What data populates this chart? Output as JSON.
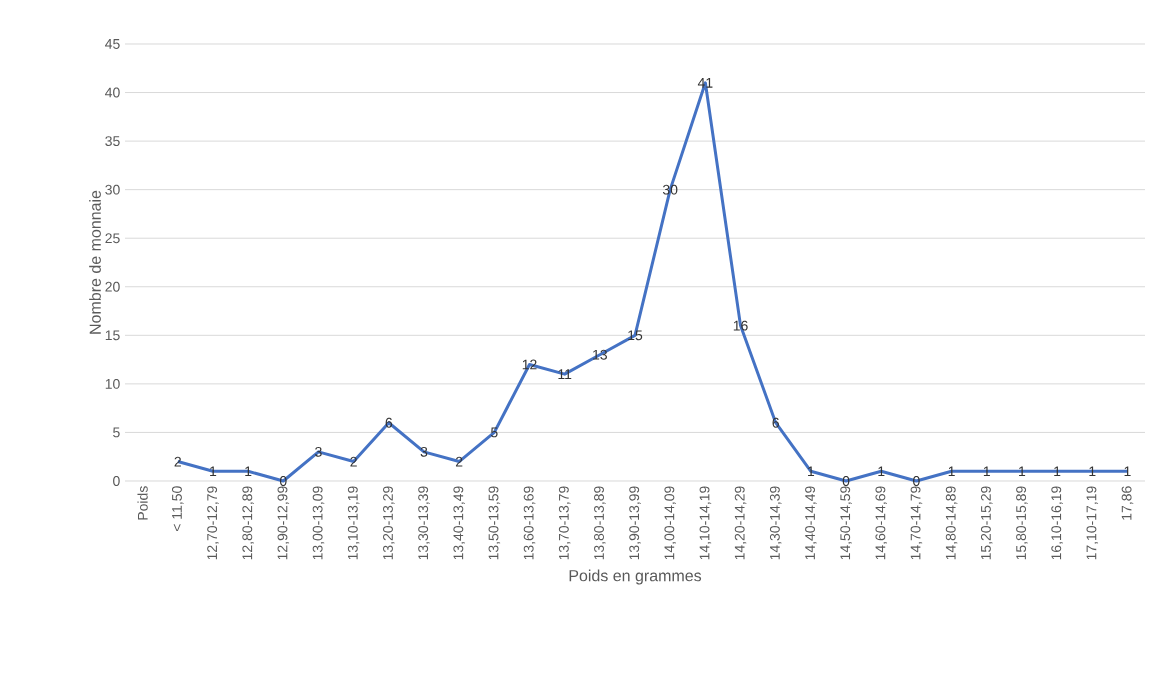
{
  "chart_data": {
    "type": "line",
    "xlabel": "Poids en grammes",
    "ylabel": "Nombre de monnaie",
    "categories": [
      "Poids",
      "< 11,50",
      "12,70-12,79",
      "12,80-12,89",
      "12,90-12,99",
      "13,00-13,09",
      "13,10-13,19",
      "13,20-13,29",
      "13,30-13,39",
      "13,40-13,49",
      "13,50-13,59",
      "13,60-13,69",
      "13,70-13,79",
      "13,80-13,89",
      "13,90-13,99",
      "14,00-14,09",
      "14,10-14,19",
      "14,20-14,29",
      "14,30-14,39",
      "14,40-14,49",
      "14,50-14,59",
      "14,60-14,69",
      "14,70-14,79",
      "14,80-14,89",
      "15,20-15,29",
      "15,80-15,89",
      "16,10-16,19",
      "17,10-17,19",
      "17,86"
    ],
    "values": [
      null,
      2,
      1,
      1,
      0,
      3,
      2,
      6,
      3,
      2,
      5,
      12,
      11,
      13,
      15,
      30,
      41,
      16,
      6,
      1,
      0,
      1,
      0,
      1,
      1,
      1,
      1,
      1,
      1
    ],
    "color": "#4472c4",
    "ylim": [
      0,
      45
    ],
    "yticks": [
      0,
      5,
      10,
      15,
      20,
      25,
      30,
      35,
      40,
      45
    ],
    "grid": "y",
    "data_labels": true,
    "marker": "none",
    "line_style": "solid"
  }
}
